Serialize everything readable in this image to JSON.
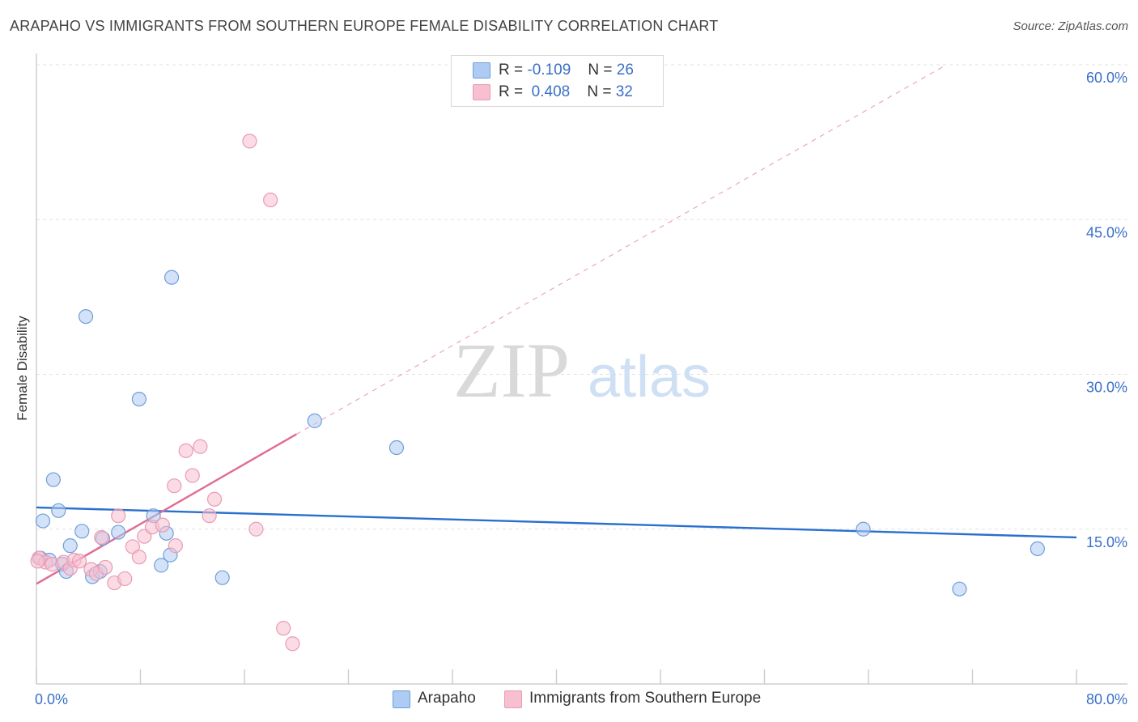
{
  "header": {
    "title": "ARAPAHO VS IMMIGRANTS FROM SOUTHERN EUROPE FEMALE DISABILITY CORRELATION CHART",
    "source": "Source: ZipAtlas.com"
  },
  "watermark": {
    "zip": "ZIP",
    "atlas": "atlas"
  },
  "legend": {
    "rows": [
      {
        "r_label": "R =",
        "r_value": "-0.109",
        "n_label": "N =",
        "n_value": "26"
      },
      {
        "r_label": "R =",
        "r_value": "0.408",
        "n_label": "N =",
        "n_value": "32"
      }
    ]
  },
  "bottom_legend": {
    "items": [
      "Arapaho",
      "Immigrants from Southern Europe"
    ]
  },
  "colors": {
    "arapaho_fill": "#aecbf3",
    "arapaho_stroke": "#6f9fd8",
    "arapaho_line": "#2a6fcf",
    "immig_fill": "#f7bfcf",
    "immig_stroke": "#e99bb4",
    "immig_line": "#e06b96",
    "grid": "#e2e2e2",
    "tick_label": "#3a70c8"
  },
  "chart_data": {
    "type": "scatter",
    "title": "ARAPAHO VS IMMIGRANTS FROM SOUTHERN EUROPE FEMALE DISABILITY CORRELATION CHART",
    "xlabel": "",
    "ylabel": "Female Disability",
    "xlim": [
      0,
      80
    ],
    "ylim": [
      0,
      60
    ],
    "x_tick_labels": [
      "0.0%",
      "80.0%"
    ],
    "y_ticks": [
      15,
      30,
      45,
      60
    ],
    "y_tick_labels": [
      "15.0%",
      "30.0%",
      "45.0%",
      "60.0%"
    ],
    "grid": true,
    "legend_position": "top-center",
    "series": [
      {
        "name": "Arapaho",
        "points": [
          [
            0.3,
            12.2
          ],
          [
            0.5,
            15.8
          ],
          [
            1.0,
            12.0
          ],
          [
            1.3,
            19.8
          ],
          [
            1.7,
            16.8
          ],
          [
            2.0,
            11.6
          ],
          [
            2.3,
            10.9
          ],
          [
            2.6,
            13.4
          ],
          [
            3.5,
            14.8
          ],
          [
            3.8,
            35.6
          ],
          [
            4.3,
            10.4
          ],
          [
            4.9,
            10.9
          ],
          [
            5.1,
            14.1
          ],
          [
            6.3,
            14.7
          ],
          [
            7.9,
            27.6
          ],
          [
            9.0,
            16.3
          ],
          [
            9.6,
            11.5
          ],
          [
            10.0,
            14.6
          ],
          [
            10.3,
            12.5
          ],
          [
            10.4,
            39.4
          ],
          [
            14.3,
            10.3
          ],
          [
            21.4,
            25.5
          ],
          [
            27.7,
            22.9
          ],
          [
            63.6,
            15.0
          ],
          [
            71.0,
            9.2
          ],
          [
            77.0,
            13.1
          ]
        ],
        "trend": {
          "x": [
            0,
            80
          ],
          "y": [
            17.1,
            14.2
          ]
        }
      },
      {
        "name": "Immigrants from Southern Europe",
        "points": [
          [
            0.2,
            12.2
          ],
          [
            0.7,
            11.8
          ],
          [
            1.2,
            11.6
          ],
          [
            2.1,
            11.8
          ],
          [
            2.6,
            11.2
          ],
          [
            2.9,
            12.0
          ],
          [
            3.3,
            11.9
          ],
          [
            4.2,
            11.1
          ],
          [
            4.6,
            10.7
          ],
          [
            5.0,
            14.2
          ],
          [
            5.3,
            11.3
          ],
          [
            6.0,
            9.8
          ],
          [
            6.3,
            16.3
          ],
          [
            6.8,
            10.2
          ],
          [
            7.4,
            13.3
          ],
          [
            7.9,
            12.3
          ],
          [
            8.3,
            14.3
          ],
          [
            8.9,
            15.2
          ],
          [
            9.7,
            15.4
          ],
          [
            10.6,
            19.2
          ],
          [
            10.7,
            13.4
          ],
          [
            11.5,
            22.6
          ],
          [
            12.0,
            20.2
          ],
          [
            12.6,
            23.0
          ],
          [
            13.3,
            16.3
          ],
          [
            13.7,
            17.9
          ],
          [
            16.4,
            52.6
          ],
          [
            16.9,
            15.0
          ],
          [
            18.0,
            46.9
          ],
          [
            19.0,
            5.4
          ],
          [
            19.7,
            3.9
          ],
          [
            0.1,
            11.9
          ]
        ],
        "trend": {
          "x": [
            0,
            20
          ],
          "y": [
            9.7,
            24.2
          ]
        },
        "trend_extension": {
          "x": [
            20,
            70
          ],
          "y": [
            24.2,
            60.0
          ]
        }
      }
    ]
  }
}
